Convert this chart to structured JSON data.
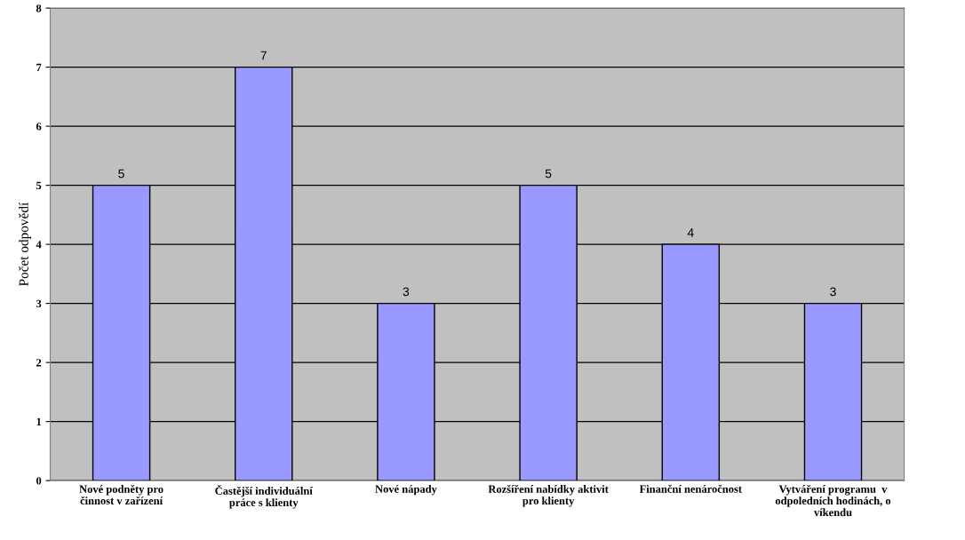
{
  "chart_data": {
    "type": "bar",
    "ylabel": "Počet odpovědí",
    "categories": [
      "Nové podněty pro\nčinnost v zařízení",
      "Častější individuální\npráce s klienty",
      "Nové nápady",
      "Rozšíření nabídky aktivit\npro klienty",
      "Finanční nenáročnost",
      "Vytváření programu  v\nodpoledních hodinách, o\nvíkendu"
    ],
    "values": [
      5,
      7,
      3,
      5,
      4,
      3
    ],
    "color": "#9999ff",
    "ylim": [
      0,
      8
    ],
    "yticks": [
      0,
      1,
      2,
      3,
      4,
      5,
      6,
      7,
      8
    ],
    "grid": "y",
    "data_labels": true
  }
}
